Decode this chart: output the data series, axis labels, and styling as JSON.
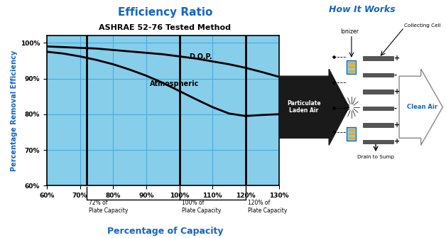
{
  "title1": "Efficiency Ratio",
  "title2": "ASHRAE 52-76 Tested Method",
  "xlabel": "Percentage of Capacity",
  "ylabel": "Percentage Removal Efficiency",
  "title2_right": "How It Works",
  "bg_color": "#87CEEB",
  "grid_color": "#4AABDB",
  "axis_label_color": "#1565C0",
  "xlim": [
    60,
    130
  ],
  "ylim": [
    60,
    102
  ],
  "xticks": [
    60,
    70,
    80,
    90,
    100,
    110,
    120,
    130
  ],
  "yticks": [
    60,
    70,
    80,
    90,
    100
  ],
  "dop_x": [
    60,
    65,
    70,
    75,
    80,
    85,
    90,
    95,
    100,
    105,
    110,
    115,
    120,
    125,
    130
  ],
  "dop_y": [
    99.0,
    98.8,
    98.6,
    98.4,
    98.0,
    97.6,
    97.2,
    96.8,
    96.2,
    95.6,
    94.8,
    94.0,
    93.0,
    91.8,
    90.5
  ],
  "atm_x": [
    60,
    65,
    70,
    75,
    80,
    85,
    90,
    95,
    100,
    105,
    110,
    115,
    120,
    125,
    130
  ],
  "atm_y": [
    97.5,
    97.0,
    96.2,
    95.2,
    94.0,
    92.5,
    90.8,
    88.8,
    86.5,
    84.2,
    82.0,
    80.2,
    79.5,
    79.8,
    80.0
  ],
  "vline_positions": [
    72,
    100,
    120
  ],
  "vline_labels": [
    "72% of\nPlate Capacity",
    "100% of\nPlate Capacity",
    "120% of\nPlate Capacity"
  ],
  "dop_label": "D.O.P.",
  "atm_label": "Atmospheric",
  "ionizer_label": "Ionizer",
  "collecting_cell_label": "Collecting Cell",
  "particulate_laden_air_label": "Particulate\nLaden Air",
  "clean_air_label": "Clean Air",
  "drain_to_sump_label": "Drain to Sump"
}
